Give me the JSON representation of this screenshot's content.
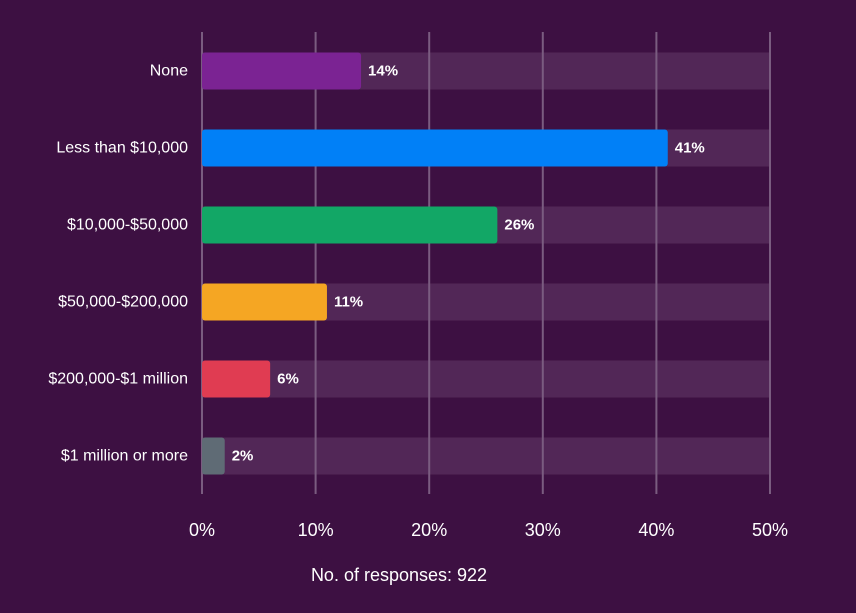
{
  "chart_data": {
    "type": "bar",
    "orientation": "horizontal",
    "categories": [
      "None",
      "Less than $10,000",
      "$10,000-$50,000",
      "$50,000-$200,000",
      "$200,000-$1 million",
      "$1 million or more"
    ],
    "values": [
      14,
      41,
      26,
      11,
      6,
      2
    ],
    "value_labels": [
      "14%",
      "41%",
      "26%",
      "11%",
      "6%",
      "2%"
    ],
    "bar_colors": [
      "#7b2393",
      "#0180f7",
      "#12a766",
      "#f5a623",
      "#e03c52",
      "#5f6b75"
    ],
    "xlim": [
      0,
      50
    ],
    "xticks": [
      0,
      10,
      20,
      30,
      40,
      50
    ],
    "xtick_labels": [
      "0%",
      "10%",
      "20%",
      "30%",
      "40%",
      "50%"
    ],
    "grid": true,
    "footnote": "No. of responses: 922"
  },
  "colors": {
    "background": "#3d1042",
    "track": "#522757",
    "gridline": "#7a5c80",
    "text": "#ffffff"
  }
}
